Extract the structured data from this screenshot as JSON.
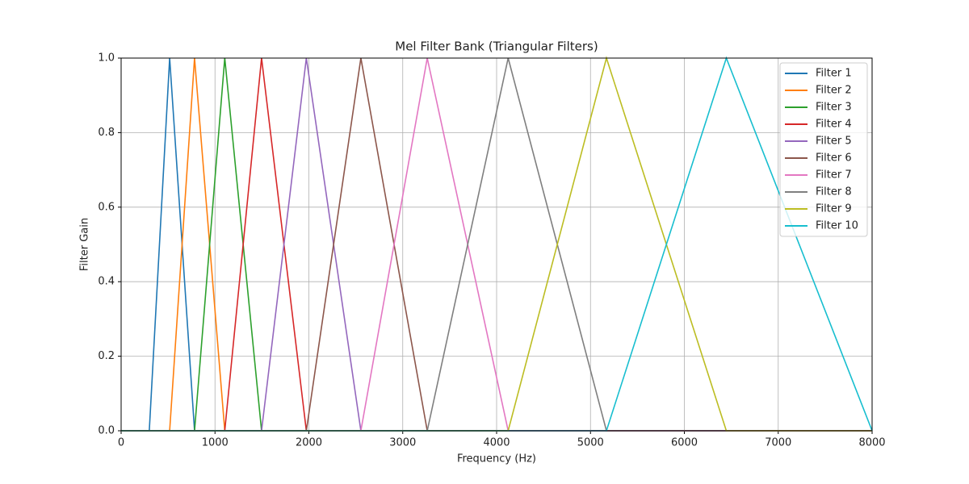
{
  "chart_data": {
    "type": "line",
    "title": "Mel Filter Bank (Triangular Filters)",
    "x_label": "Frequency (Hz)",
    "y_label": "Filter Gain",
    "xlim": [
      0,
      8000
    ],
    "ylim": [
      0,
      1
    ],
    "xticks": [
      0,
      1000,
      2000,
      3000,
      4000,
      5000,
      6000,
      7000,
      8000
    ],
    "yticks": [
      {
        "value": 0,
        "label": "0.0"
      },
      {
        "value": 0.2,
        "label": "0.2"
      },
      {
        "value": 0.4,
        "label": "0.4"
      },
      {
        "value": 0.6,
        "label": "0.6"
      },
      {
        "value": 0.8,
        "label": "0.8"
      },
      {
        "value": 1,
        "label": "1.0"
      }
    ],
    "grid": true,
    "legend": "upper right",
    "series": [
      {
        "name": "Filter 1",
        "color": "#1f77b4",
        "x": [
          0,
          300,
          517,
          782,
          8000
        ],
        "values": [
          0,
          0,
          1,
          0,
          0
        ]
      },
      {
        "name": "Filter 2",
        "color": "#ff7f0e",
        "x": [
          0,
          517,
          782,
          1104,
          8000
        ],
        "values": [
          0,
          0,
          1,
          0,
          0
        ]
      },
      {
        "name": "Filter 3",
        "color": "#2ca02c",
        "x": [
          0,
          782,
          1104,
          1496,
          8000
        ],
        "values": [
          0,
          0,
          1,
          0,
          0
        ]
      },
      {
        "name": "Filter 4",
        "color": "#d62728",
        "x": [
          0,
          1104,
          1496,
          1973,
          8000
        ],
        "values": [
          0,
          0,
          1,
          0,
          0
        ]
      },
      {
        "name": "Filter 5",
        "color": "#9467bd",
        "x": [
          0,
          1496,
          1973,
          2554,
          8000
        ],
        "values": [
          0,
          0,
          1,
          0,
          0
        ]
      },
      {
        "name": "Filter 6",
        "color": "#8c564b",
        "x": [
          0,
          1973,
          2554,
          3261,
          8000
        ],
        "values": [
          0,
          0,
          1,
          0,
          0
        ]
      },
      {
        "name": "Filter 7",
        "color": "#e377c2",
        "x": [
          0,
          2554,
          3261,
          4123,
          8000
        ],
        "values": [
          0,
          0,
          1,
          0,
          0
        ]
      },
      {
        "name": "Filter 8",
        "color": "#7f7f7f",
        "x": [
          0,
          3261,
          4123,
          5170,
          8000
        ],
        "values": [
          0,
          0,
          1,
          0,
          0
        ]
      },
      {
        "name": "Filter 9",
        "color": "#bcbd22",
        "x": [
          0,
          4123,
          5170,
          6447,
          8000
        ],
        "values": [
          0,
          0,
          1,
          0,
          0
        ]
      },
      {
        "name": "Filter 10",
        "color": "#17becf",
        "x": [
          0,
          5170,
          6447,
          8000
        ],
        "values": [
          0,
          0,
          1,
          0
        ]
      }
    ]
  }
}
